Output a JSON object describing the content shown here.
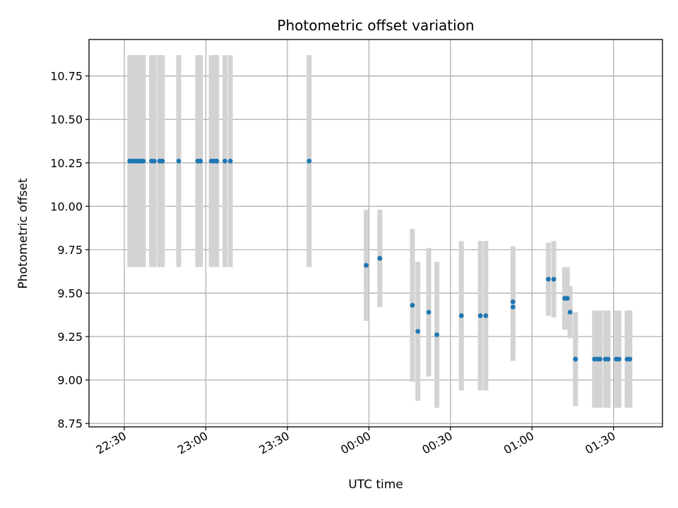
{
  "chart_data": {
    "type": "scatter",
    "title": "Photometric offset variation",
    "xlabel": "UTC time",
    "ylabel": "Photometric offset",
    "xlim": [
      "22:17",
      "01:48"
    ],
    "ylim": [
      8.73,
      10.96
    ],
    "xticks": [
      "22:30",
      "23:00",
      "23:30",
      "00:00",
      "00:30",
      "01:00",
      "01:30"
    ],
    "yticks": [
      "8.75",
      "9.00",
      "9.25",
      "9.50",
      "9.75",
      "10.00",
      "10.25",
      "10.50",
      "10.75"
    ],
    "grid": true,
    "colors": {
      "point": "#1f77b4",
      "errorbar": "#d3d3d3"
    },
    "series": [
      {
        "x": [
          "22:32",
          "22:33",
          "22:34",
          "22:35",
          "22:36",
          "22:37",
          "22:40",
          "22:41",
          "22:43",
          "22:44",
          "22:50",
          "22:57",
          "22:58",
          "23:02",
          "23:03",
          "23:04",
          "23:07",
          "23:09",
          "23:38",
          "23:59",
          "00:04",
          "00:16",
          "00:18",
          "00:22",
          "00:25",
          "00:34",
          "00:41",
          "00:43",
          "00:53",
          "00:53",
          "01:06",
          "01:08",
          "01:12",
          "01:13",
          "01:14",
          "01:16",
          "01:16",
          "01:23",
          "01:24",
          "01:25",
          "01:27",
          "01:28",
          "01:31",
          "01:32",
          "01:35",
          "01:36"
        ],
        "y": [
          10.26,
          10.26,
          10.26,
          10.26,
          10.26,
          10.26,
          10.26,
          10.26,
          10.26,
          10.26,
          10.26,
          10.26,
          10.26,
          10.26,
          10.26,
          10.26,
          10.26,
          10.26,
          10.26,
          9.66,
          9.7,
          9.43,
          9.28,
          9.39,
          9.26,
          9.37,
          9.37,
          9.37,
          9.42,
          9.45,
          9.58,
          9.58,
          9.47,
          9.47,
          9.39,
          9.12,
          9.12,
          9.12,
          9.12,
          9.12,
          9.12,
          9.12,
          9.12,
          9.12,
          9.12,
          9.12
        ],
        "yerr": [
          0.61,
          0.61,
          0.61,
          0.61,
          0.61,
          0.61,
          0.61,
          0.61,
          0.61,
          0.61,
          0.61,
          0.61,
          0.61,
          0.61,
          0.61,
          0.61,
          0.61,
          0.61,
          0.61,
          0.32,
          0.28,
          0.44,
          0.4,
          0.37,
          0.42,
          0.43,
          0.43,
          0.43,
          0.31,
          0.32,
          0.21,
          0.22,
          0.18,
          0.18,
          0.15,
          0.27,
          0.27,
          0.28,
          0.28,
          0.28,
          0.28,
          0.28,
          0.28,
          0.28,
          0.28,
          0.28
        ]
      }
    ]
  }
}
